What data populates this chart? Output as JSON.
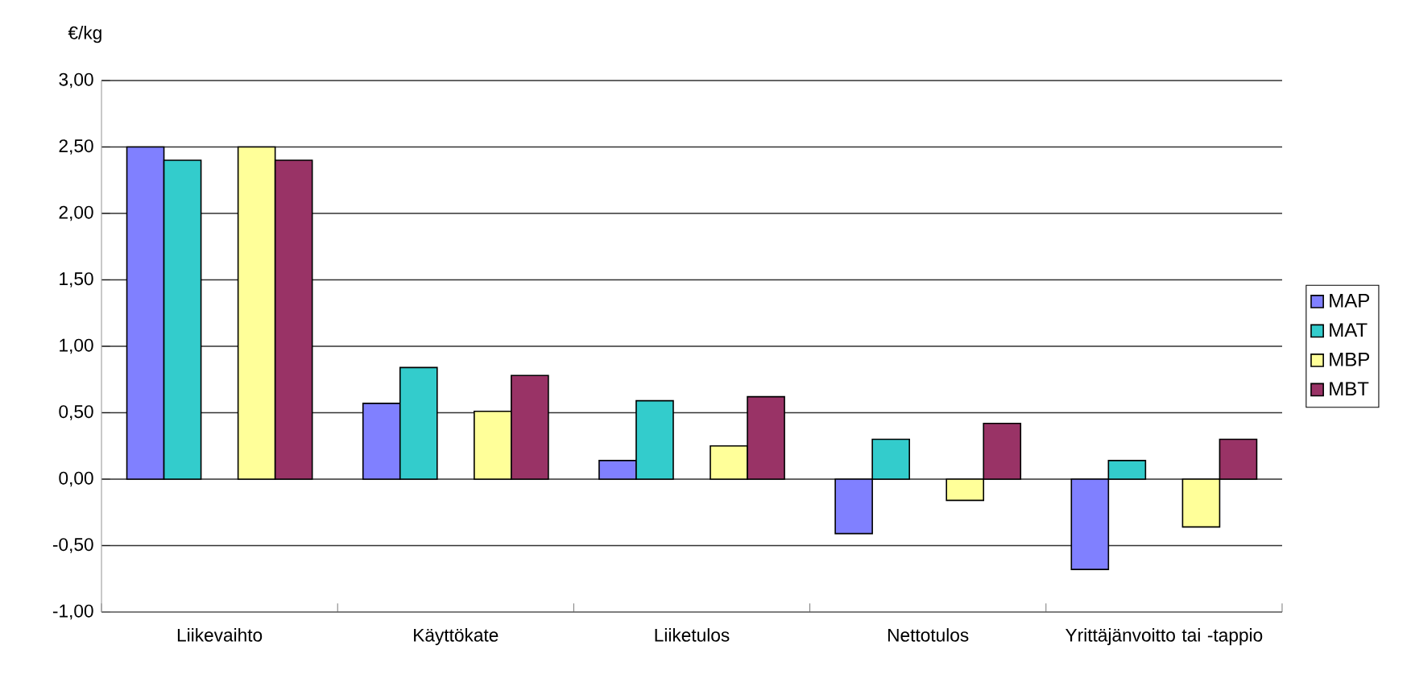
{
  "chart_data": {
    "type": "bar",
    "ylabel": "€/kg",
    "categories": [
      "Liikevaihto",
      "Käyttökate",
      "Liiketulos",
      "Nettotulos",
      "Yrittäjänvoitto tai -tappio"
    ],
    "series": [
      {
        "name": "MAP",
        "color": "#8080ff",
        "values": [
          2.5,
          0.57,
          0.14,
          -0.41,
          -0.68
        ]
      },
      {
        "name": "MAT",
        "color": "#33cccc",
        "values": [
          2.4,
          0.84,
          0.59,
          0.3,
          0.14
        ]
      },
      {
        "name": "MBP",
        "color": "#ffff99",
        "values": [
          2.5,
          0.51,
          0.25,
          -0.16,
          -0.36
        ]
      },
      {
        "name": "MBT",
        "color": "#993366",
        "values": [
          2.4,
          0.78,
          0.62,
          0.42,
          0.3
        ]
      }
    ],
    "ylim": [
      -1,
      3
    ],
    "yticks": [
      {
        "value": -1,
        "label": "-1,00"
      },
      {
        "value": -0.5,
        "label": "-0,50"
      },
      {
        "value": 0,
        "label": "0,00"
      },
      {
        "value": 0.5,
        "label": "0,50"
      },
      {
        "value": 1,
        "label": "1,00"
      },
      {
        "value": 1.5,
        "label": "1,50"
      },
      {
        "value": 2,
        "label": "2,00"
      },
      {
        "value": 2.5,
        "label": "2,50"
      },
      {
        "value": 3,
        "label": "3,00"
      }
    ],
    "grid": "y",
    "legend": "right"
  }
}
